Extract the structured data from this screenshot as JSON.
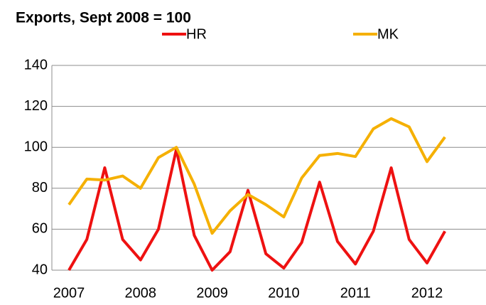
{
  "chart_data": {
    "type": "line",
    "title": "Exports, Sept 2008 = 100",
    "categories": [
      "2007",
      null,
      null,
      null,
      "2008",
      null,
      null,
      null,
      "2009",
      null,
      null,
      null,
      "2010",
      null,
      null,
      null,
      "2011",
      null,
      null,
      null,
      "2012",
      null
    ],
    "series": [
      {
        "name": "HR",
        "color": "#ee1111",
        "values": [
          40,
          55,
          90,
          55,
          45,
          60,
          99,
          57,
          40,
          49,
          79,
          48,
          41,
          53.5,
          83,
          54,
          43,
          59,
          90,
          55,
          43.5,
          59
        ]
      },
      {
        "name": "MK",
        "color": "#f5b000",
        "values": [
          72,
          84.5,
          84,
          86,
          80,
          95,
          100,
          82,
          58,
          69,
          77,
          72,
          66,
          85,
          96,
          97,
          95.5,
          109,
          114,
          110,
          93,
          105
        ]
      }
    ],
    "ylim": [
      40,
      140
    ],
    "yticks": [
      40,
      60,
      80,
      100,
      120,
      140
    ],
    "grid": true
  }
}
